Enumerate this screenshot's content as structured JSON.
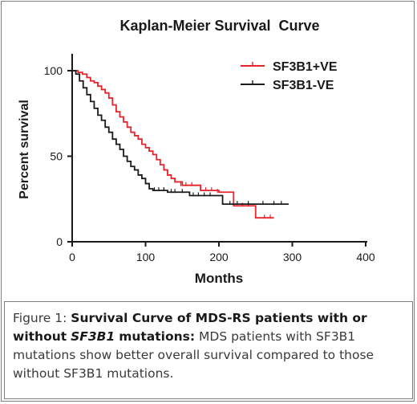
{
  "chart_data": {
    "type": "line",
    "title": "Kaplan-Meier Survival  Curve",
    "xlabel": "Months",
    "ylabel": "Percent survival",
    "xlim": [
      0,
      400
    ],
    "ylim": [
      0,
      100
    ],
    "xticks": [
      0,
      100,
      200,
      300,
      400
    ],
    "yticks": [
      0,
      50,
      100
    ],
    "grid": false,
    "legend_position": "top-right",
    "series": [
      {
        "name": "SF3B1+VE",
        "color": "#e8232a",
        "step": true,
        "points": [
          [
            0,
            100
          ],
          [
            8,
            99
          ],
          [
            14,
            98
          ],
          [
            20,
            96
          ],
          [
            25,
            94
          ],
          [
            30,
            93
          ],
          [
            35,
            91
          ],
          [
            40,
            89
          ],
          [
            45,
            87
          ],
          [
            50,
            84
          ],
          [
            55,
            80
          ],
          [
            60,
            76
          ],
          [
            65,
            73
          ],
          [
            70,
            70
          ],
          [
            75,
            67
          ],
          [
            80,
            64
          ],
          [
            85,
            62
          ],
          [
            90,
            60
          ],
          [
            95,
            57
          ],
          [
            100,
            55
          ],
          [
            105,
            53
          ],
          [
            110,
            51
          ],
          [
            115,
            48
          ],
          [
            120,
            45
          ],
          [
            125,
            42
          ],
          [
            130,
            39
          ],
          [
            135,
            37
          ],
          [
            140,
            35
          ],
          [
            150,
            33
          ],
          [
            160,
            33
          ],
          [
            175,
            30
          ],
          [
            200,
            29
          ],
          [
            220,
            21
          ],
          [
            245,
            21
          ],
          [
            250,
            14
          ],
          [
            275,
            14
          ]
        ],
        "censored": [
          [
            140,
            35
          ],
          [
            148,
            33
          ],
          [
            155,
            33
          ],
          [
            163,
            33
          ],
          [
            182,
            30
          ],
          [
            190,
            30
          ],
          [
            198,
            29
          ],
          [
            232,
            21
          ],
          [
            240,
            21
          ],
          [
            262,
            14
          ],
          [
            270,
            14
          ]
        ]
      },
      {
        "name": "SF3B1-VE",
        "color": "#1a1a1a",
        "step": true,
        "points": [
          [
            0,
            100
          ],
          [
            5,
            98
          ],
          [
            10,
            94
          ],
          [
            15,
            90
          ],
          [
            20,
            86
          ],
          [
            25,
            82
          ],
          [
            30,
            78
          ],
          [
            35,
            74
          ],
          [
            40,
            71
          ],
          [
            45,
            67
          ],
          [
            50,
            64
          ],
          [
            55,
            60
          ],
          [
            60,
            57
          ],
          [
            65,
            54
          ],
          [
            70,
            50
          ],
          [
            75,
            47
          ],
          [
            80,
            44
          ],
          [
            85,
            42
          ],
          [
            90,
            39
          ],
          [
            95,
            37
          ],
          [
            100,
            34
          ],
          [
            105,
            31
          ],
          [
            110,
            30
          ],
          [
            130,
            29
          ],
          [
            160,
            27
          ],
          [
            200,
            27
          ],
          [
            205,
            22
          ],
          [
            295,
            22
          ]
        ],
        "censored": [
          [
            112,
            30
          ],
          [
            118,
            30
          ],
          [
            125,
            30
          ],
          [
            135,
            29
          ],
          [
            140,
            29
          ],
          [
            150,
            29
          ],
          [
            165,
            27
          ],
          [
            172,
            27
          ],
          [
            180,
            27
          ],
          [
            188,
            27
          ],
          [
            215,
            22
          ],
          [
            225,
            22
          ],
          [
            240,
            22
          ],
          [
            260,
            22
          ],
          [
            275,
            22
          ],
          [
            285,
            22
          ]
        ]
      }
    ]
  },
  "caption": {
    "label": "Figure 1:",
    "bold_start": "Survival Curve of MDS-RS patients with or without",
    "gene_italic": "SF3B1",
    "bold_end": "mutations:",
    "body": "MDS patients with SF3B1 mutations show better overall survival compared to those without SF3B1 mutations."
  }
}
